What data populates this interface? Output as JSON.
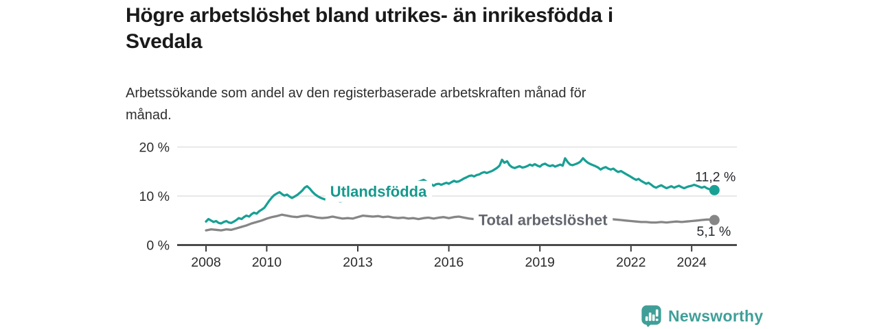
{
  "header": {
    "title_lines": [
      "Högre arbetslöshet bland utrikes- än inrikesfödda i",
      "Svedala"
    ],
    "subtitle_lines": [
      "Arbetssökande som andel av den registerbaserade arbetskraften månad för",
      "månad."
    ]
  },
  "chart_data": {
    "type": "line",
    "title": "Högre arbetslöshet bland utrikes- än inrikesfödda i Svedala",
    "subtitle": "Arbetssökande som andel av den registerbaserade arbetskraften månad för månad.",
    "unit": "%",
    "grid": "horizontal",
    "legend_position": "inline-labels",
    "xlim": [
      2007.05,
      2025.5
    ],
    "ylim": [
      0,
      20.8
    ],
    "x_ticks": [
      {
        "year": 2008,
        "label": "2008"
      },
      {
        "year": 2010,
        "label": "2010"
      },
      {
        "year": 2013,
        "label": "2013"
      },
      {
        "year": 2016,
        "label": "2016"
      },
      {
        "year": 2019,
        "label": "2019"
      },
      {
        "year": 2022,
        "label": "2022"
      },
      {
        "year": 2024,
        "label": "2024"
      }
    ],
    "y_ticks": [
      {
        "value": 0,
        "label": "0 %"
      },
      {
        "value": 10,
        "label": "10 %"
      },
      {
        "value": 20,
        "label": "20 %"
      }
    ],
    "axis_color": "#3b3b3b",
    "gridline_color": "#e0e0e0",
    "series": [
      {
        "id": "total",
        "name": "Total arbetslöshet",
        "color": "#868686",
        "label_color": "#63666e",
        "end_label": "5,1 %",
        "end_value": 5.1,
        "end_label_position": "below",
        "inline_label": {
          "year": 2019.1,
          "value": 5.15
        },
        "points": [
          [
            2008,
            3.0
          ],
          [
            2008.17,
            3.2
          ],
          [
            2008.33,
            3.1
          ],
          [
            2008.5,
            3.0
          ],
          [
            2008.67,
            3.2
          ],
          [
            2008.83,
            3.1
          ],
          [
            2009,
            3.4
          ],
          [
            2009.17,
            3.7
          ],
          [
            2009.33,
            4.0
          ],
          [
            2009.5,
            4.4
          ],
          [
            2009.67,
            4.7
          ],
          [
            2009.83,
            5.0
          ],
          [
            2010,
            5.4
          ],
          [
            2010.17,
            5.7
          ],
          [
            2010.33,
            5.9
          ],
          [
            2010.5,
            6.2
          ],
          [
            2010.67,
            6.0
          ],
          [
            2010.83,
            5.8
          ],
          [
            2011,
            5.7
          ],
          [
            2011.17,
            5.9
          ],
          [
            2011.33,
            6.0
          ],
          [
            2011.5,
            5.8
          ],
          [
            2011.67,
            5.6
          ],
          [
            2011.83,
            5.5
          ],
          [
            2012,
            5.6
          ],
          [
            2012.17,
            5.8
          ],
          [
            2012.33,
            5.6
          ],
          [
            2012.5,
            5.4
          ],
          [
            2012.67,
            5.5
          ],
          [
            2012.83,
            5.4
          ],
          [
            2013,
            5.7
          ],
          [
            2013.17,
            6.0
          ],
          [
            2013.33,
            5.9
          ],
          [
            2013.5,
            5.8
          ],
          [
            2013.67,
            5.9
          ],
          [
            2013.83,
            5.7
          ],
          [
            2014,
            5.8
          ],
          [
            2014.17,
            5.6
          ],
          [
            2014.33,
            5.5
          ],
          [
            2014.5,
            5.6
          ],
          [
            2014.67,
            5.4
          ],
          [
            2014.83,
            5.5
          ],
          [
            2015,
            5.3
          ],
          [
            2015.17,
            5.5
          ],
          [
            2015.33,
            5.6
          ],
          [
            2015.5,
            5.4
          ],
          [
            2015.67,
            5.6
          ],
          [
            2015.83,
            5.7
          ],
          [
            2016,
            5.5
          ],
          [
            2016.17,
            5.7
          ],
          [
            2016.33,
            5.8
          ],
          [
            2016.5,
            5.6
          ],
          [
            2016.67,
            5.4
          ],
          [
            2016.83,
            5.3
          ],
          [
            2017,
            5.4
          ],
          [
            2017.25,
            5.3
          ],
          [
            2017.5,
            5.4
          ],
          [
            2017.75,
            5.2
          ],
          [
            2018,
            5.1
          ],
          [
            2018.25,
            5.2
          ],
          [
            2018.5,
            5.1
          ],
          [
            2018.75,
            5.0
          ],
          [
            2019,
            5.1
          ],
          [
            2019.25,
            5.2
          ],
          [
            2019.5,
            5.3
          ],
          [
            2019.75,
            5.4
          ],
          [
            2020,
            5.6
          ],
          [
            2020.25,
            5.8
          ],
          [
            2020.5,
            5.9
          ],
          [
            2020.75,
            5.7
          ],
          [
            2021,
            5.5
          ],
          [
            2021.17,
            5.4
          ],
          [
            2021.33,
            5.3
          ],
          [
            2021.5,
            5.2
          ],
          [
            2021.67,
            5.1
          ],
          [
            2021.83,
            5.0
          ],
          [
            2022,
            4.9
          ],
          [
            2022.17,
            4.8
          ],
          [
            2022.33,
            4.7
          ],
          [
            2022.5,
            4.7
          ],
          [
            2022.67,
            4.6
          ],
          [
            2022.83,
            4.6
          ],
          [
            2023,
            4.7
          ],
          [
            2023.17,
            4.6
          ],
          [
            2023.33,
            4.7
          ],
          [
            2023.5,
            4.8
          ],
          [
            2023.67,
            4.7
          ],
          [
            2023.83,
            4.8
          ],
          [
            2024,
            4.9
          ],
          [
            2024.17,
            5.0
          ],
          [
            2024.33,
            5.1
          ],
          [
            2024.5,
            5.2
          ],
          [
            2024.67,
            5.2
          ],
          [
            2024.75,
            5.1
          ]
        ]
      },
      {
        "id": "utlandsfodda",
        "name": "Utlandsfödda",
        "color": "#18a094",
        "label_color": "#14998d",
        "end_label": "11,2 %",
        "end_value": 11.2,
        "end_label_position": "above",
        "inline_label": {
          "year": 2013.68,
          "value": 11.0
        },
        "points": [
          [
            2008,
            4.8
          ],
          [
            2008.08,
            5.3
          ],
          [
            2008.17,
            5.0
          ],
          [
            2008.25,
            4.7
          ],
          [
            2008.33,
            4.9
          ],
          [
            2008.42,
            4.5
          ],
          [
            2008.5,
            4.4
          ],
          [
            2008.58,
            4.7
          ],
          [
            2008.67,
            4.9
          ],
          [
            2008.75,
            4.6
          ],
          [
            2008.83,
            4.5
          ],
          [
            2008.92,
            4.8
          ],
          [
            2009,
            5.1
          ],
          [
            2009.08,
            5.5
          ],
          [
            2009.17,
            5.3
          ],
          [
            2009.25,
            5.7
          ],
          [
            2009.33,
            6.0
          ],
          [
            2009.42,
            5.8
          ],
          [
            2009.5,
            6.3
          ],
          [
            2009.58,
            6.6
          ],
          [
            2009.67,
            6.4
          ],
          [
            2009.75,
            6.9
          ],
          [
            2009.83,
            7.2
          ],
          [
            2009.92,
            7.6
          ],
          [
            2010,
            8.3
          ],
          [
            2010.08,
            9.0
          ],
          [
            2010.17,
            9.7
          ],
          [
            2010.25,
            10.2
          ],
          [
            2010.33,
            10.5
          ],
          [
            2010.42,
            10.8
          ],
          [
            2010.5,
            10.4
          ],
          [
            2010.58,
            10.1
          ],
          [
            2010.67,
            10.3
          ],
          [
            2010.75,
            9.9
          ],
          [
            2010.83,
            9.6
          ],
          [
            2010.92,
            9.9
          ],
          [
            2011,
            10.2
          ],
          [
            2011.08,
            10.6
          ],
          [
            2011.17,
            11.1
          ],
          [
            2011.25,
            11.7
          ],
          [
            2011.33,
            12.0
          ],
          [
            2011.42,
            11.5
          ],
          [
            2011.5,
            10.9
          ],
          [
            2011.58,
            10.4
          ],
          [
            2011.67,
            10.0
          ],
          [
            2011.75,
            9.7
          ],
          [
            2011.83,
            9.5
          ],
          [
            2011.92,
            9.3
          ],
          [
            2012,
            9.6
          ],
          [
            2012.08,
            9.8
          ],
          [
            2012.17,
            9.6
          ],
          [
            2012.25,
            9.4
          ],
          [
            2012.33,
            9.1
          ],
          [
            2012.42,
            8.9
          ],
          [
            2012.5,
            9.0
          ],
          [
            2012.58,
            9.2
          ],
          [
            2012.67,
            9.1
          ],
          [
            2012.75,
            9.3
          ],
          [
            2013,
            9.7
          ],
          [
            2013.25,
            10.1
          ],
          [
            2013.5,
            10.6
          ],
          [
            2013.75,
            11.0
          ],
          [
            2014,
            11.4
          ],
          [
            2014.25,
            11.8
          ],
          [
            2014.5,
            12.2
          ],
          [
            2014.75,
            12.6
          ],
          [
            2015,
            12.9
          ],
          [
            2015.17,
            13.3
          ],
          [
            2015.25,
            13.0
          ],
          [
            2015.33,
            12.7
          ],
          [
            2015.42,
            12.4
          ],
          [
            2015.5,
            12.1
          ],
          [
            2015.58,
            12.4
          ],
          [
            2015.67,
            12.5
          ],
          [
            2015.75,
            12.3
          ],
          [
            2015.83,
            12.5
          ],
          [
            2015.92,
            12.7
          ],
          [
            2016,
            12.5
          ],
          [
            2016.08,
            12.8
          ],
          [
            2016.17,
            13.1
          ],
          [
            2016.25,
            12.9
          ],
          [
            2016.33,
            13.0
          ],
          [
            2016.42,
            13.3
          ],
          [
            2016.5,
            13.6
          ],
          [
            2016.58,
            13.8
          ],
          [
            2016.67,
            14.1
          ],
          [
            2016.75,
            14.2
          ],
          [
            2016.83,
            14.0
          ],
          [
            2016.92,
            14.3
          ],
          [
            2017,
            14.4
          ],
          [
            2017.08,
            14.7
          ],
          [
            2017.17,
            14.9
          ],
          [
            2017.25,
            14.7
          ],
          [
            2017.33,
            14.9
          ],
          [
            2017.42,
            15.1
          ],
          [
            2017.5,
            15.4
          ],
          [
            2017.58,
            15.7
          ],
          [
            2017.67,
            16.2
          ],
          [
            2017.75,
            17.4
          ],
          [
            2017.83,
            16.8
          ],
          [
            2017.92,
            17.1
          ],
          [
            2018,
            16.3
          ],
          [
            2018.08,
            15.9
          ],
          [
            2018.17,
            15.7
          ],
          [
            2018.25,
            15.9
          ],
          [
            2018.33,
            16.1
          ],
          [
            2018.42,
            15.8
          ],
          [
            2018.5,
            15.9
          ],
          [
            2018.58,
            16.1
          ],
          [
            2018.67,
            16.4
          ],
          [
            2018.75,
            16.2
          ],
          [
            2018.83,
            16.5
          ],
          [
            2018.92,
            16.2
          ],
          [
            2019,
            16.0
          ],
          [
            2019.08,
            16.4
          ],
          [
            2019.17,
            16.6
          ],
          [
            2019.25,
            16.3
          ],
          [
            2019.33,
            16.1
          ],
          [
            2019.42,
            16.3
          ],
          [
            2019.5,
            16.0
          ],
          [
            2019.58,
            16.2
          ],
          [
            2019.67,
            16.4
          ],
          [
            2019.75,
            16.2
          ],
          [
            2019.83,
            17.7
          ],
          [
            2019.92,
            16.9
          ],
          [
            2020,
            16.4
          ],
          [
            2020.08,
            16.3
          ],
          [
            2020.17,
            16.5
          ],
          [
            2020.25,
            16.7
          ],
          [
            2020.33,
            17.0
          ],
          [
            2020.42,
            17.7
          ],
          [
            2020.5,
            17.2
          ],
          [
            2020.58,
            16.8
          ],
          [
            2020.67,
            16.5
          ],
          [
            2020.75,
            16.3
          ],
          [
            2020.83,
            16.1
          ],
          [
            2020.92,
            15.8
          ],
          [
            2021,
            15.4
          ],
          [
            2021.08,
            15.7
          ],
          [
            2021.17,
            15.9
          ],
          [
            2021.25,
            15.6
          ],
          [
            2021.33,
            15.4
          ],
          [
            2021.42,
            15.6
          ],
          [
            2021.5,
            15.2
          ],
          [
            2021.58,
            14.9
          ],
          [
            2021.67,
            15.1
          ],
          [
            2021.75,
            14.8
          ],
          [
            2021.83,
            14.5
          ],
          [
            2021.92,
            14.2
          ],
          [
            2022,
            13.9
          ],
          [
            2022.08,
            13.6
          ],
          [
            2022.17,
            13.3
          ],
          [
            2022.25,
            13.5
          ],
          [
            2022.33,
            13.1
          ],
          [
            2022.42,
            12.8
          ],
          [
            2022.5,
            12.5
          ],
          [
            2022.58,
            12.7
          ],
          [
            2022.67,
            12.3
          ],
          [
            2022.75,
            11.9
          ],
          [
            2022.83,
            11.7
          ],
          [
            2022.92,
            12.0
          ],
          [
            2023,
            12.2
          ],
          [
            2023.08,
            11.9
          ],
          [
            2023.17,
            11.6
          ],
          [
            2023.25,
            11.8
          ],
          [
            2023.33,
            12.0
          ],
          [
            2023.42,
            11.7
          ],
          [
            2023.5,
            11.9
          ],
          [
            2023.58,
            12.1
          ],
          [
            2023.67,
            11.8
          ],
          [
            2023.75,
            11.6
          ],
          [
            2023.83,
            11.8
          ],
          [
            2023.92,
            12.0
          ],
          [
            2024,
            12.1
          ],
          [
            2024.08,
            12.3
          ],
          [
            2024.17,
            12.1
          ],
          [
            2024.25,
            11.9
          ],
          [
            2024.33,
            11.7
          ],
          [
            2024.42,
            11.9
          ],
          [
            2024.5,
            11.6
          ],
          [
            2024.58,
            11.4
          ],
          [
            2024.67,
            11.3
          ],
          [
            2024.75,
            11.2
          ]
        ]
      }
    ]
  },
  "footer": {
    "logo_text": "Newsworthy",
    "logo_color": "#3f9f98"
  }
}
